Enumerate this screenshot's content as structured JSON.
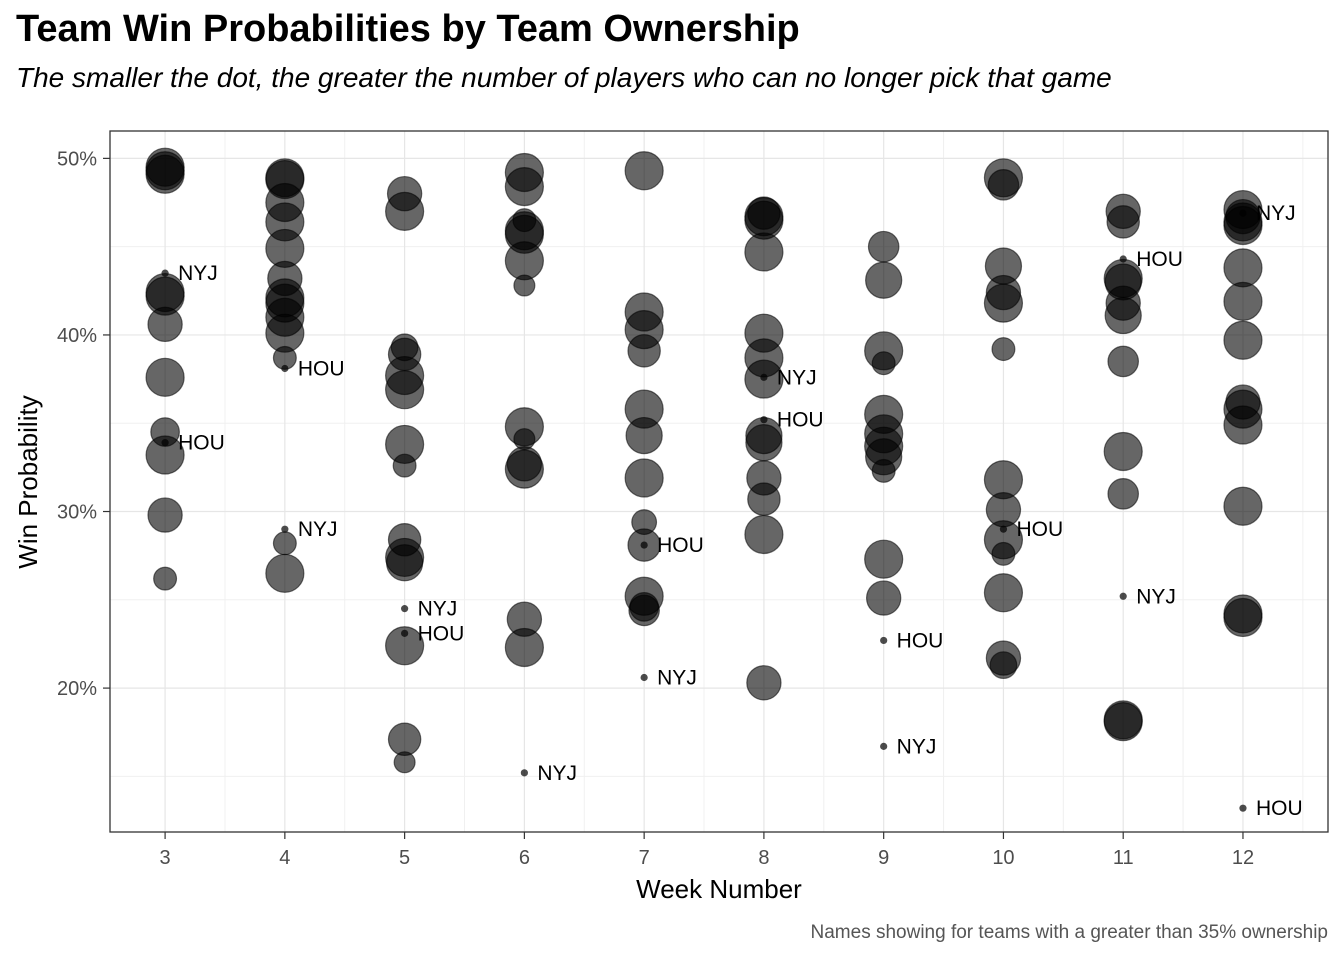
{
  "chart_data": {
    "type": "scatter",
    "title": "Team Win Probabilities by Team Ownership",
    "subtitle": "The smaller the dot, the greater the number of players who can no longer pick that game",
    "caption": "Names showing for teams with a greater than 35% ownership",
    "xlabel": "Week Number",
    "ylabel": "Win Probability",
    "x_ticks": [
      3,
      4,
      5,
      6,
      7,
      8,
      9,
      10,
      11,
      12
    ],
    "y_ticks": [
      0.2,
      0.3,
      0.4,
      0.5
    ],
    "y_tick_labels": [
      "20%",
      "30%",
      "40%",
      "50%"
    ],
    "xlim": [
      2.54,
      12.71
    ],
    "ylim": [
      0.1185,
      0.5155
    ],
    "grid": true,
    "point_color": "#000000",
    "point_opacity": 0.6,
    "points": [
      {
        "x": 3,
        "y": 0.495,
        "s": 1.0
      },
      {
        "x": 3,
        "y": 0.493,
        "s": 1.0
      },
      {
        "x": 3,
        "y": 0.491,
        "s": 1.0
      },
      {
        "x": 3,
        "y": 0.424,
        "s": 1.0
      },
      {
        "x": 3,
        "y": 0.422,
        "s": 1.0
      },
      {
        "x": 3,
        "y": 0.406,
        "s": 0.9
      },
      {
        "x": 3,
        "y": 0.376,
        "s": 1.0
      },
      {
        "x": 3,
        "y": 0.345,
        "s": 0.75
      },
      {
        "x": 3,
        "y": 0.332,
        "s": 1.0
      },
      {
        "x": 3,
        "y": 0.298,
        "s": 0.9
      },
      {
        "x": 3,
        "y": 0.262,
        "s": 0.6
      },
      {
        "x": 4,
        "y": 0.489,
        "s": 1.0
      },
      {
        "x": 4,
        "y": 0.488,
        "s": 1.0
      },
      {
        "x": 4,
        "y": 0.475,
        "s": 1.0
      },
      {
        "x": 4,
        "y": 0.464,
        "s": 1.0
      },
      {
        "x": 4,
        "y": 0.449,
        "s": 1.0
      },
      {
        "x": 4,
        "y": 0.432,
        "s": 0.9
      },
      {
        "x": 4,
        "y": 0.421,
        "s": 1.0
      },
      {
        "x": 4,
        "y": 0.418,
        "s": 1.0
      },
      {
        "x": 4,
        "y": 0.41,
        "s": 1.0
      },
      {
        "x": 4,
        "y": 0.401,
        "s": 1.0
      },
      {
        "x": 4,
        "y": 0.387,
        "s": 0.6
      },
      {
        "x": 4,
        "y": 0.282,
        "s": 0.6
      },
      {
        "x": 4,
        "y": 0.265,
        "s": 1.0
      },
      {
        "x": 5,
        "y": 0.48,
        "s": 0.9
      },
      {
        "x": 5,
        "y": 0.47,
        "s": 1.0
      },
      {
        "x": 5,
        "y": 0.393,
        "s": 0.7
      },
      {
        "x": 5,
        "y": 0.389,
        "s": 0.85
      },
      {
        "x": 5,
        "y": 0.377,
        "s": 1.0
      },
      {
        "x": 5,
        "y": 0.369,
        "s": 1.0
      },
      {
        "x": 5,
        "y": 0.338,
        "s": 1.0
      },
      {
        "x": 5,
        "y": 0.326,
        "s": 0.6
      },
      {
        "x": 5,
        "y": 0.284,
        "s": 0.85
      },
      {
        "x": 5,
        "y": 0.274,
        "s": 1.0
      },
      {
        "x": 5,
        "y": 0.271,
        "s": 0.95
      },
      {
        "x": 5,
        "y": 0.224,
        "s": 1.0
      },
      {
        "x": 5,
        "y": 0.171,
        "s": 0.85
      },
      {
        "x": 5,
        "y": 0.158,
        "s": 0.55
      },
      {
        "x": 6,
        "y": 0.492,
        "s": 1.0
      },
      {
        "x": 6,
        "y": 0.484,
        "s": 1.0
      },
      {
        "x": 6,
        "y": 0.465,
        "s": 0.6
      },
      {
        "x": 6,
        "y": 0.459,
        "s": 1.0
      },
      {
        "x": 6,
        "y": 0.457,
        "s": 1.0
      },
      {
        "x": 6,
        "y": 0.442,
        "s": 1.0
      },
      {
        "x": 6,
        "y": 0.428,
        "s": 0.55
      },
      {
        "x": 6,
        "y": 0.348,
        "s": 1.0
      },
      {
        "x": 6,
        "y": 0.341,
        "s": 0.55
      },
      {
        "x": 6,
        "y": 0.327,
        "s": 0.9
      },
      {
        "x": 6,
        "y": 0.324,
        "s": 1.0
      },
      {
        "x": 6,
        "y": 0.239,
        "s": 0.9
      },
      {
        "x": 6,
        "y": 0.223,
        "s": 1.0
      },
      {
        "x": 7,
        "y": 0.493,
        "s": 1.0
      },
      {
        "x": 7,
        "y": 0.413,
        "s": 1.0
      },
      {
        "x": 7,
        "y": 0.403,
        "s": 1.0
      },
      {
        "x": 7,
        "y": 0.391,
        "s": 0.85
      },
      {
        "x": 7,
        "y": 0.358,
        "s": 1.0
      },
      {
        "x": 7,
        "y": 0.343,
        "s": 0.95
      },
      {
        "x": 7,
        "y": 0.319,
        "s": 1.0
      },
      {
        "x": 7,
        "y": 0.294,
        "s": 0.65
      },
      {
        "x": 7,
        "y": 0.281,
        "s": 0.85
      },
      {
        "x": 7,
        "y": 0.252,
        "s": 1.0
      },
      {
        "x": 7,
        "y": 0.246,
        "s": 0.75
      },
      {
        "x": 7,
        "y": 0.244,
        "s": 0.8
      },
      {
        "x": 8,
        "y": 0.469,
        "s": 0.85
      },
      {
        "x": 8,
        "y": 0.467,
        "s": 1.0
      },
      {
        "x": 8,
        "y": 0.465,
        "s": 1.0
      },
      {
        "x": 8,
        "y": 0.447,
        "s": 1.0
      },
      {
        "x": 8,
        "y": 0.401,
        "s": 1.0
      },
      {
        "x": 8,
        "y": 0.387,
        "s": 1.0
      },
      {
        "x": 8,
        "y": 0.375,
        "s": 1.0
      },
      {
        "x": 8,
        "y": 0.343,
        "s": 0.95
      },
      {
        "x": 8,
        "y": 0.339,
        "s": 0.95
      },
      {
        "x": 8,
        "y": 0.319,
        "s": 0.9
      },
      {
        "x": 8,
        "y": 0.307,
        "s": 0.85
      },
      {
        "x": 8,
        "y": 0.287,
        "s": 1.0
      },
      {
        "x": 8,
        "y": 0.203,
        "s": 0.9
      },
      {
        "x": 9,
        "y": 0.45,
        "s": 0.8
      },
      {
        "x": 9,
        "y": 0.431,
        "s": 0.95
      },
      {
        "x": 9,
        "y": 0.391,
        "s": 1.0
      },
      {
        "x": 9,
        "y": 0.384,
        "s": 0.6
      },
      {
        "x": 9,
        "y": 0.355,
        "s": 1.0
      },
      {
        "x": 9,
        "y": 0.344,
        "s": 1.0
      },
      {
        "x": 9,
        "y": 0.337,
        "s": 1.0
      },
      {
        "x": 9,
        "y": 0.331,
        "s": 0.95
      },
      {
        "x": 9,
        "y": 0.323,
        "s": 0.6
      },
      {
        "x": 9,
        "y": 0.273,
        "s": 1.0
      },
      {
        "x": 9,
        "y": 0.251,
        "s": 0.9
      },
      {
        "x": 10,
        "y": 0.489,
        "s": 1.0
      },
      {
        "x": 10,
        "y": 0.485,
        "s": 0.8
      },
      {
        "x": 10,
        "y": 0.439,
        "s": 0.95
      },
      {
        "x": 10,
        "y": 0.424,
        "s": 0.9
      },
      {
        "x": 10,
        "y": 0.418,
        "s": 1.0
      },
      {
        "x": 10,
        "y": 0.392,
        "s": 0.6
      },
      {
        "x": 10,
        "y": 0.318,
        "s": 1.0
      },
      {
        "x": 10,
        "y": 0.301,
        "s": 0.9
      },
      {
        "x": 10,
        "y": 0.284,
        "s": 1.0
      },
      {
        "x": 10,
        "y": 0.276,
        "s": 0.6
      },
      {
        "x": 10,
        "y": 0.254,
        "s": 1.0
      },
      {
        "x": 10,
        "y": 0.217,
        "s": 0.9
      },
      {
        "x": 10,
        "y": 0.213,
        "s": 0.7
      },
      {
        "x": 11,
        "y": 0.47,
        "s": 0.9
      },
      {
        "x": 11,
        "y": 0.464,
        "s": 0.85
      },
      {
        "x": 11,
        "y": 0.432,
        "s": 1.0
      },
      {
        "x": 11,
        "y": 0.43,
        "s": 0.95
      },
      {
        "x": 11,
        "y": 0.418,
        "s": 0.9
      },
      {
        "x": 11,
        "y": 0.411,
        "s": 0.95
      },
      {
        "x": 11,
        "y": 0.385,
        "s": 0.8
      },
      {
        "x": 11,
        "y": 0.334,
        "s": 1.0
      },
      {
        "x": 11,
        "y": 0.31,
        "s": 0.8
      },
      {
        "x": 11,
        "y": 0.182,
        "s": 1.0
      },
      {
        "x": 11,
        "y": 0.181,
        "s": 1.0
      },
      {
        "x": 12,
        "y": 0.471,
        "s": 1.0
      },
      {
        "x": 12,
        "y": 0.467,
        "s": 0.9
      },
      {
        "x": 12,
        "y": 0.464,
        "s": 1.0
      },
      {
        "x": 12,
        "y": 0.462,
        "s": 1.0
      },
      {
        "x": 12,
        "y": 0.438,
        "s": 1.0
      },
      {
        "x": 12,
        "y": 0.419,
        "s": 1.0
      },
      {
        "x": 12,
        "y": 0.397,
        "s": 1.0
      },
      {
        "x": 12,
        "y": 0.362,
        "s": 0.9
      },
      {
        "x": 12,
        "y": 0.358,
        "s": 1.0
      },
      {
        "x": 12,
        "y": 0.349,
        "s": 1.0
      },
      {
        "x": 12,
        "y": 0.303,
        "s": 1.0
      },
      {
        "x": 12,
        "y": 0.242,
        "s": 1.0
      },
      {
        "x": 12,
        "y": 0.24,
        "s": 1.0
      }
    ],
    "labeled_points": [
      {
        "x": 3,
        "y": 0.435,
        "label": "NYJ"
      },
      {
        "x": 3,
        "y": 0.339,
        "label": "HOU"
      },
      {
        "x": 4,
        "y": 0.381,
        "label": "HOU"
      },
      {
        "x": 4,
        "y": 0.29,
        "label": "NYJ"
      },
      {
        "x": 5,
        "y": 0.245,
        "label": "NYJ"
      },
      {
        "x": 5,
        "y": 0.231,
        "label": "HOU"
      },
      {
        "x": 6,
        "y": 0.152,
        "label": "NYJ"
      },
      {
        "x": 7,
        "y": 0.281,
        "label": "HOU"
      },
      {
        "x": 7,
        "y": 0.206,
        "label": "NYJ"
      },
      {
        "x": 8,
        "y": 0.376,
        "label": "NYJ"
      },
      {
        "x": 8,
        "y": 0.352,
        "label": "HOU"
      },
      {
        "x": 9,
        "y": 0.227,
        "label": "HOU"
      },
      {
        "x": 9,
        "y": 0.167,
        "label": "NYJ"
      },
      {
        "x": 10,
        "y": 0.29,
        "label": "HOU"
      },
      {
        "x": 11,
        "y": 0.443,
        "label": "HOU"
      },
      {
        "x": 11,
        "y": 0.252,
        "label": "NYJ"
      },
      {
        "x": 12,
        "y": 0.469,
        "label": "NYJ"
      },
      {
        "x": 12,
        "y": 0.132,
        "label": "HOU"
      }
    ]
  }
}
